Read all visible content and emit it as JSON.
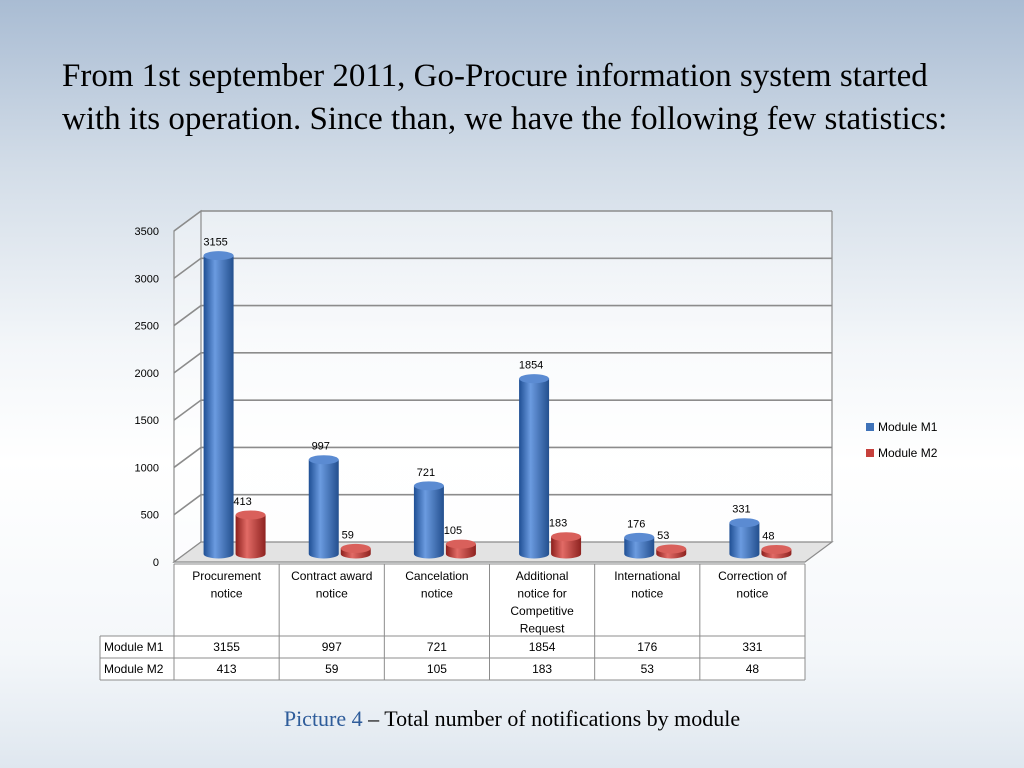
{
  "slide": {
    "title": "From 1st september 2011, Go-Procure information system started with its operation. Since than, we have the following few statistics:"
  },
  "caption": {
    "label": "Picture 4",
    "dash": " – ",
    "text": "Total number of notifications by module"
  },
  "colors": {
    "m1": "#3f72b8",
    "m2": "#c6403c",
    "grid": "#8c8c8c"
  },
  "chart_data": {
    "type": "bar",
    "categories": [
      [
        "Procurement",
        "notice"
      ],
      [
        "Contract award",
        "notice"
      ],
      [
        "Cancelation",
        "notice"
      ],
      [
        "Additional",
        "notice for",
        "Competitive",
        "Request"
      ],
      [
        "International",
        "notice"
      ],
      [
        "Correction of",
        "notice"
      ]
    ],
    "series": [
      {
        "name": "Module M1",
        "values": [
          3155,
          997,
          721,
          1854,
          176,
          331
        ]
      },
      {
        "name": "Module M2",
        "values": [
          413,
          59,
          105,
          183,
          53,
          48
        ]
      }
    ],
    "ylim": [
      0,
      3500
    ],
    "yticks": [
      0,
      500,
      1000,
      1500,
      2000,
      2500,
      3000,
      3500
    ],
    "legend_position": "right",
    "data_table": true,
    "grid": true
  }
}
